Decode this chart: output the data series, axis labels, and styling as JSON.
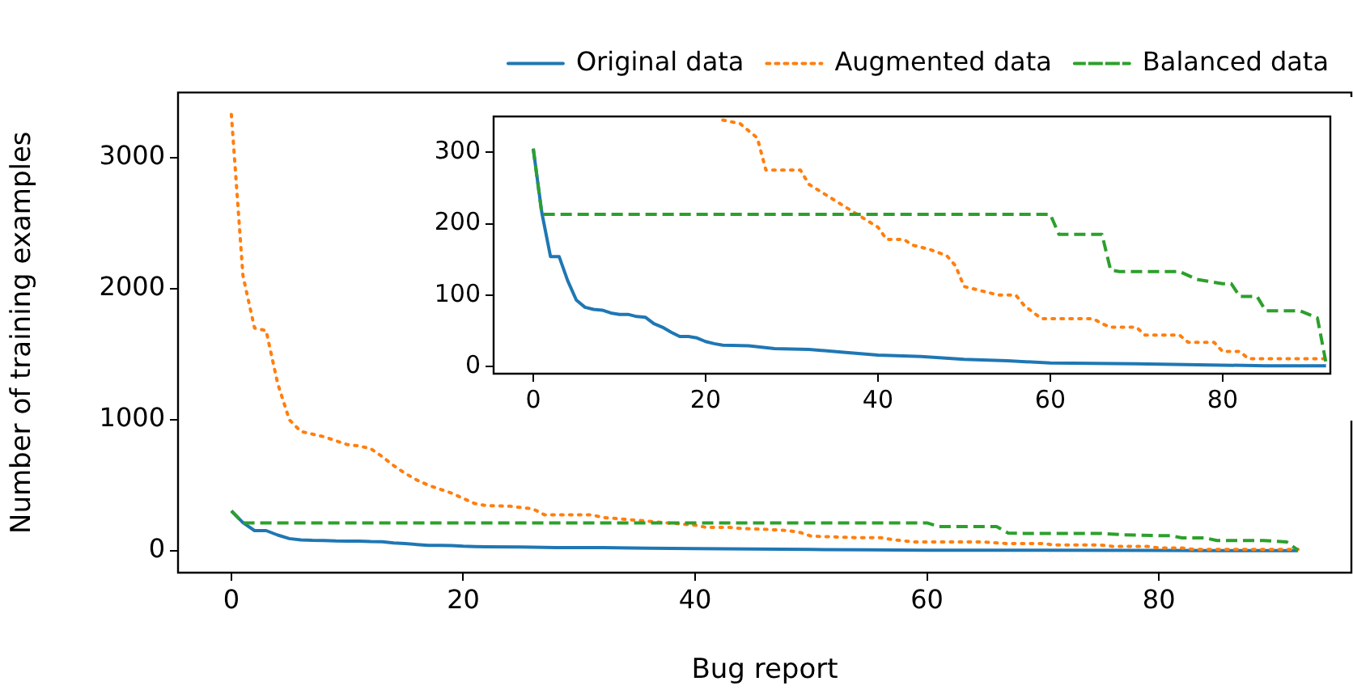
{
  "chart_data": [
    {
      "type": "line",
      "xlabel": "Bug report",
      "ylabel": "Number of training examples",
      "legend": "top right",
      "grid": false,
      "xlim": [
        -4.6,
        96.6
      ],
      "ylim": [
        -167,
        3497
      ],
      "xticks": [
        0,
        20,
        40,
        60,
        80
      ],
      "yticks": [
        0,
        1000,
        2000,
        3000
      ],
      "series": [
        {
          "name": "Original data",
          "color": "#1f77b4",
          "line_style": "solid",
          "x": [
            0,
            1,
            2,
            3,
            4,
            5,
            6,
            7,
            8,
            9,
            10,
            11,
            12,
            13,
            14,
            15,
            16,
            17,
            18,
            19,
            20,
            21,
            22,
            25,
            28,
            32,
            36,
            40,
            45,
            50,
            55,
            60,
            70,
            80,
            85,
            92
          ],
          "values": [
            305,
            215,
            154,
            154,
            120,
            93,
            83,
            80,
            79,
            75,
            73,
            73,
            70,
            69,
            60,
            55,
            48,
            42,
            42,
            40,
            35,
            32,
            30,
            29,
            25,
            24,
            20,
            16,
            14,
            10,
            8,
            5,
            4,
            2,
            1,
            1
          ]
        },
        {
          "name": "Augmented data",
          "color": "#ff7f0e",
          "line_style": "dotted",
          "x": [
            0,
            1,
            2,
            3,
            4,
            5,
            6,
            7,
            8,
            9,
            10,
            11,
            12,
            13,
            14,
            15,
            16,
            17,
            18,
            19,
            20,
            21,
            22,
            24,
            26,
            27,
            31,
            32,
            34,
            36,
            38,
            40,
            41,
            43,
            44,
            46,
            48,
            49,
            50,
            54,
            56,
            57,
            59,
            65,
            66,
            67,
            70,
            71,
            75,
            76,
            79,
            80,
            82,
            83,
            92
          ],
          "values": [
            3330,
            2100,
            1700,
            1680,
            1275,
            1000,
            910,
            890,
            870,
            840,
            810,
            800,
            780,
            720,
            650,
            590,
            540,
            500,
            470,
            440,
            400,
            360,
            345,
            340,
            320,
            275,
            275,
            255,
            240,
            225,
            210,
            195,
            178,
            178,
            170,
            164,
            155,
            141,
            112,
            100,
            100,
            85,
            67,
            67,
            60,
            55,
            55,
            44,
            44,
            34,
            34,
            21,
            21,
            11,
            11
          ]
        },
        {
          "name": "Balanced data",
          "color": "#2ca02c",
          "line_style": "dashed",
          "x": [
            0,
            1,
            60,
            61,
            66,
            67,
            68,
            75,
            77,
            80,
            81,
            82,
            84,
            85,
            89,
            91,
            92
          ],
          "values": [
            305,
            213,
            213,
            185,
            185,
            135,
            133,
            133,
            122,
            116,
            116,
            98,
            98,
            78,
            78,
            68,
            5
          ]
        }
      ]
    },
    {
      "type": "line",
      "grid": false,
      "xlim": [
        -4.6,
        92.5
      ],
      "ylim": [
        -10,
        350
      ],
      "xticks": [
        0,
        20,
        40,
        60,
        80
      ],
      "yticks": [
        0,
        100,
        200,
        300
      ],
      "series": [
        {
          "color": "#1f77b4",
          "line_style": "solid",
          "x": [
            0,
            1,
            2,
            3,
            4,
            5,
            6,
            7,
            8,
            9,
            10,
            11,
            12,
            13,
            14,
            15,
            16,
            17,
            18,
            19,
            20,
            21,
            22,
            25,
            28,
            32,
            36,
            40,
            45,
            50,
            55,
            60,
            70,
            80,
            85,
            92
          ],
          "values": [
            305,
            215,
            154,
            154,
            120,
            93,
            83,
            80,
            79,
            75,
            73,
            73,
            70,
            69,
            60,
            55,
            48,
            42,
            42,
            40,
            35,
            32,
            30,
            29,
            25,
            24,
            20,
            16,
            14,
            10,
            8,
            5,
            4,
            2,
            1,
            1
          ]
        },
        {
          "color": "#ff7f0e",
          "line_style": "dotted",
          "x": [
            22,
            24,
            26,
            27,
            31,
            32,
            34,
            36,
            38,
            40,
            41,
            43,
            44,
            46,
            48,
            49,
            50,
            54,
            56,
            57,
            59,
            65,
            66,
            67,
            70,
            71,
            75,
            76,
            79,
            80,
            82,
            83,
            92
          ],
          "values": [
            345,
            340,
            320,
            275,
            275,
            255,
            240,
            225,
            210,
            195,
            178,
            178,
            170,
            164,
            155,
            141,
            112,
            100,
            100,
            85,
            67,
            67,
            60,
            55,
            55,
            44,
            44,
            34,
            34,
            21,
            21,
            11,
            11
          ]
        },
        {
          "color": "#2ca02c",
          "line_style": "dashed",
          "x": [
            0,
            1,
            60,
            61,
            66,
            67,
            68,
            75,
            77,
            80,
            81,
            82,
            84,
            85,
            89,
            91,
            92
          ],
          "values": [
            305,
            213,
            213,
            185,
            185,
            135,
            133,
            133,
            122,
            116,
            116,
            98,
            98,
            78,
            78,
            68,
            5
          ]
        }
      ]
    }
  ]
}
